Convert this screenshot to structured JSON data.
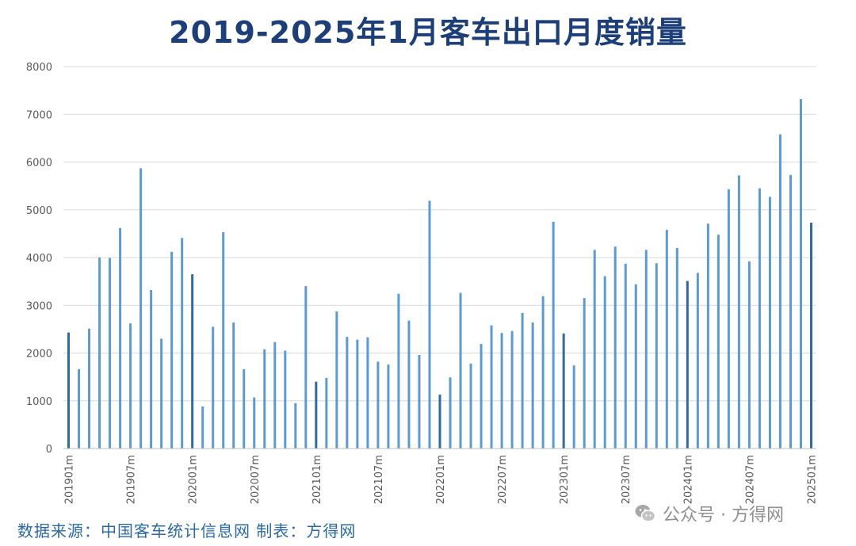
{
  "title": "2019-2025年1月客车出口月度销量",
  "source_note": "数据来源：中国客车统计信息网 制表：方得网",
  "watermark": {
    "text": "公众号 · 方得网",
    "icon": "wechat-icon"
  },
  "colors": {
    "title": "#1c3f7a",
    "bar": "#5b9bd5",
    "bar_january": "#2e6aa4",
    "grid": "#d9d9d9",
    "axis_text": "#595959",
    "source": "#2a69a8"
  },
  "chart_data": {
    "type": "bar",
    "title": "2019-2025年1月客车出口月度销量",
    "ylim": [
      0,
      8000
    ],
    "yticks": [
      0,
      1000,
      2000,
      3000,
      4000,
      5000,
      6000,
      7000,
      8000
    ],
    "grid": true,
    "legend": "none",
    "xlabel": "",
    "ylabel": "",
    "categories": [
      "201901m",
      "201902m",
      "201903m",
      "201904m",
      "201905m",
      "201906m",
      "201907m",
      "201908m",
      "201909m",
      "201910m",
      "201911m",
      "201912m",
      "202001m",
      "202002m",
      "202003m",
      "202004m",
      "202005m",
      "202006m",
      "202007m",
      "202008m",
      "202009m",
      "202010m",
      "202011m",
      "202012m",
      "202101m",
      "202102m",
      "202103m",
      "202104m",
      "202105m",
      "202106m",
      "202107m",
      "202108m",
      "202109m",
      "202110m",
      "202111m",
      "202112m",
      "202201m",
      "202202m",
      "202203m",
      "202204m",
      "202205m",
      "202206m",
      "202207m",
      "202208m",
      "202209m",
      "202210m",
      "202211m",
      "202212m",
      "202301m",
      "202302m",
      "202303m",
      "202304m",
      "202305m",
      "202306m",
      "202307m",
      "202308m",
      "202309m",
      "202310m",
      "202311m",
      "202312m",
      "202401m",
      "202402m",
      "202403m",
      "202404m",
      "202405m",
      "202406m",
      "202407m",
      "202408m",
      "202409m",
      "202410m",
      "202411m",
      "202412m",
      "202501m"
    ],
    "tick_labels": [
      "201901m",
      "201907m",
      "202001m",
      "202007m",
      "202101m",
      "202107m",
      "202201m",
      "202207m",
      "202301m",
      "202307m",
      "202401m",
      "202407m",
      "202501m"
    ],
    "values": [
      2430,
      1660,
      2510,
      4000,
      3990,
      4620,
      2620,
      5870,
      3320,
      2300,
      4120,
      4410,
      3650,
      880,
      2550,
      4530,
      2640,
      1660,
      1070,
      2080,
      2230,
      2050,
      950,
      3400,
      1400,
      1480,
      2870,
      2340,
      2280,
      2330,
      1820,
      1760,
      3240,
      2680,
      1960,
      5190,
      1130,
      1490,
      3260,
      1780,
      2190,
      2580,
      2420,
      2460,
      2840,
      2640,
      3190,
      4750,
      2410,
      1740,
      3150,
      4160,
      3610,
      4230,
      3870,
      3440,
      4160,
      3880,
      4580,
      4200,
      3510,
      3680,
      4710,
      4480,
      5430,
      5720,
      3920,
      5450,
      5270,
      6580,
      5730,
      7320,
      4730
    ]
  }
}
